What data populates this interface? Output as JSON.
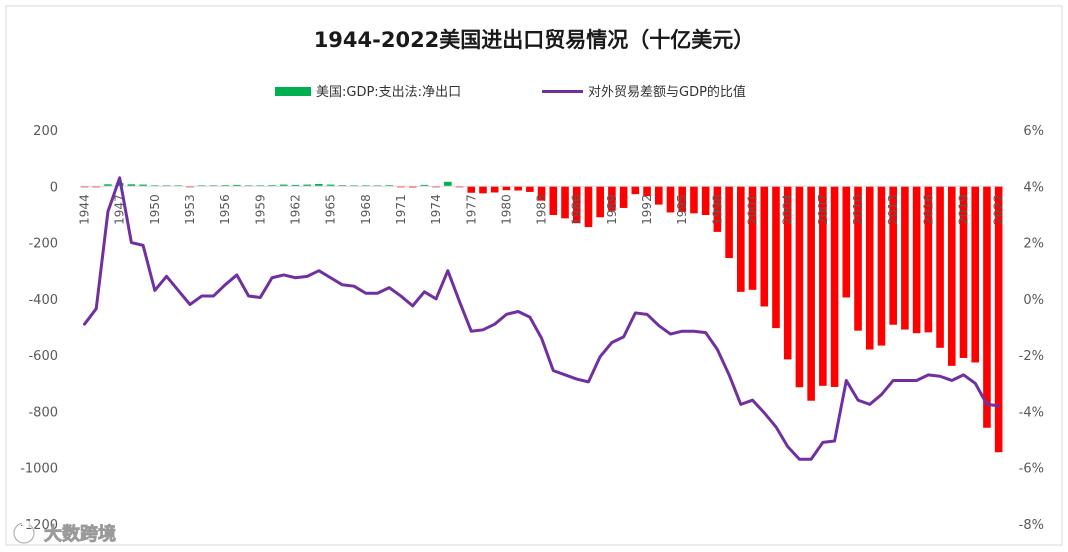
{
  "chart_data": {
    "type": "bar+line",
    "title": "1944-2022美国进出口贸易情况（十亿美元）",
    "legend_position": "top-center",
    "grid": false,
    "x_tick_labels": [
      "1944",
      "1947",
      "1950",
      "1953",
      "1956",
      "1959",
      "1962",
      "1965",
      "1968",
      "1971",
      "1974",
      "1977",
      "1980",
      "1983",
      "1986",
      "1989",
      "1992",
      "1995",
      "1998",
      "2001",
      "2004",
      "2007",
      "2010",
      "2013",
      "2016",
      "2019",
      "2022"
    ],
    "y_left": {
      "range": [
        -1200,
        200
      ],
      "ticks": [
        "200",
        "0",
        "-200",
        "-400",
        "-600",
        "-800",
        "-1000",
        "-1200"
      ]
    },
    "y_right": {
      "range": [
        -8,
        6
      ],
      "ticks": [
        "6%",
        "4%",
        "2%",
        "0%",
        "-2%",
        "-4%",
        "-6%",
        "-8%"
      ]
    },
    "series": [
      {
        "name": "美国:GDP:支出法:净出口",
        "axis": "left",
        "kind": "bar",
        "color_positive": "#00b050",
        "color_negative": "#ff0000",
        "x": [
          1944,
          1945,
          1946,
          1947,
          1948,
          1949,
          1950,
          1951,
          1952,
          1953,
          1954,
          1955,
          1956,
          1957,
          1958,
          1959,
          1960,
          1961,
          1962,
          1963,
          1964,
          1965,
          1966,
          1967,
          1968,
          1969,
          1970,
          1971,
          1972,
          1973,
          1974,
          1975,
          1976,
          1977,
          1978,
          1979,
          1980,
          1981,
          1982,
          1983,
          1984,
          1985,
          1986,
          1987,
          1988,
          1989,
          1990,
          1991,
          1992,
          1993,
          1994,
          1995,
          1996,
          1997,
          1998,
          1999,
          2000,
          2001,
          2002,
          2003,
          2004,
          2005,
          2006,
          2007,
          2008,
          2009,
          2010,
          2011,
          2012,
          2013,
          2014,
          2015,
          2016,
          2017,
          2018,
          2019,
          2020,
          2021,
          2022
        ],
        "values": [
          -2,
          -1,
          7,
          12,
          7,
          6,
          2,
          3,
          2,
          -1,
          2,
          2,
          4,
          5,
          2,
          0,
          4,
          6,
          5,
          6,
          8,
          6,
          4,
          3,
          0,
          0,
          4,
          -1,
          -4,
          5,
          -2,
          16,
          -2,
          -23,
          -25,
          -22,
          -14,
          -15,
          -20,
          -51,
          -102,
          -114,
          -131,
          -145,
          -110,
          -87,
          -77,
          -28,
          -35,
          -65,
          -93,
          -91,
          -96,
          -102,
          -162,
          -255,
          -375,
          -368,
          -427,
          -504,
          -615,
          -714,
          -762,
          -709,
          -713,
          -395,
          -513,
          -580,
          -566,
          -492,
          -509,
          -522,
          -519,
          -574,
          -638,
          -610,
          -626,
          -858,
          -945
        ]
      },
      {
        "name": "对外贸易差额与GDP的比值",
        "axis": "right",
        "kind": "line",
        "color": "#7030a0",
        "x": [
          1944,
          1945,
          1946,
          1947,
          1948,
          1949,
          1950,
          1951,
          1952,
          1953,
          1954,
          1955,
          1956,
          1957,
          1958,
          1959,
          1960,
          1961,
          1962,
          1963,
          1964,
          1965,
          1966,
          1967,
          1968,
          1969,
          1970,
          1971,
          1972,
          1973,
          1974,
          1975,
          1976,
          1977,
          1978,
          1979,
          1980,
          1981,
          1982,
          1983,
          1984,
          1985,
          1986,
          1987,
          1988,
          1989,
          1990,
          1991,
          1992,
          1993,
          1994,
          1995,
          1996,
          1997,
          1998,
          1999,
          2000,
          2001,
          2002,
          2003,
          2004,
          2005,
          2006,
          2007,
          2008,
          2009,
          2010,
          2011,
          2012,
          2013,
          2014,
          2015,
          2016,
          2017,
          2018,
          2019,
          2020,
          2021,
          2022
        ],
        "values": [
          -0.9,
          -0.35,
          3.1,
          4.3,
          2.0,
          1.9,
          0.3,
          0.8,
          0.3,
          -0.2,
          0.1,
          0.1,
          0.5,
          0.85,
          0.1,
          0.05,
          0.75,
          0.85,
          0.75,
          0.8,
          1.0,
          0.75,
          0.5,
          0.45,
          0.2,
          0.2,
          0.4,
          0.1,
          -0.25,
          0.25,
          0.0,
          1.0,
          -0.1,
          -1.15,
          -1.1,
          -0.9,
          -0.55,
          -0.45,
          -0.65,
          -1.4,
          -2.55,
          -2.7,
          -2.85,
          -2.95,
          -2.05,
          -1.55,
          -1.35,
          -0.5,
          -0.55,
          -0.95,
          -1.25,
          -1.15,
          -1.15,
          -1.2,
          -1.8,
          -2.7,
          -3.75,
          -3.6,
          -4.05,
          -4.55,
          -5.25,
          -5.7,
          -5.7,
          -5.1,
          -5.05,
          -2.9,
          -3.6,
          -3.75,
          -3.4,
          -2.9,
          -2.9,
          -2.9,
          -2.7,
          -2.75,
          -2.9,
          -2.7,
          -3.0,
          -3.75,
          -3.8
        ]
      }
    ]
  },
  "watermark": {
    "text": "大数跨境"
  }
}
